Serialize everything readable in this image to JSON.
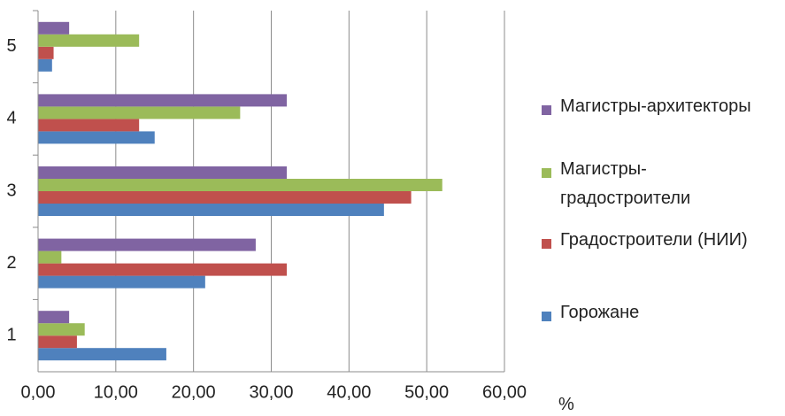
{
  "chart_data": {
    "type": "bar",
    "orientation": "horizontal",
    "categories": [
      "1",
      "2",
      "3",
      "4",
      "5"
    ],
    "series": [
      {
        "name": "Горожане",
        "color": "#4f81bd",
        "values": [
          16.5,
          21.5,
          44.5,
          15.0,
          1.8
        ]
      },
      {
        "name": "Градостроители (НИИ)",
        "color": "#c0504d",
        "values": [
          5.0,
          32.0,
          48.0,
          13.0,
          2.0
        ]
      },
      {
        "name": "Магистры-\nградостроители",
        "color": "#9bbb59",
        "values": [
          6.0,
          3.0,
          52.0,
          26.0,
          13.0
        ]
      },
      {
        "name": "Магистры-архитекторы",
        "color": "#8064a2",
        "values": [
          4.0,
          28.0,
          32.0,
          32.0,
          4.0
        ]
      }
    ],
    "x_ticks": [
      "0,00",
      "10,00",
      "20,00",
      "30,00",
      "40,00",
      "50,00",
      "60,00"
    ],
    "xlabel": "%",
    "xlim": [
      0,
      60
    ],
    "grid": true,
    "legend_position": "right"
  }
}
